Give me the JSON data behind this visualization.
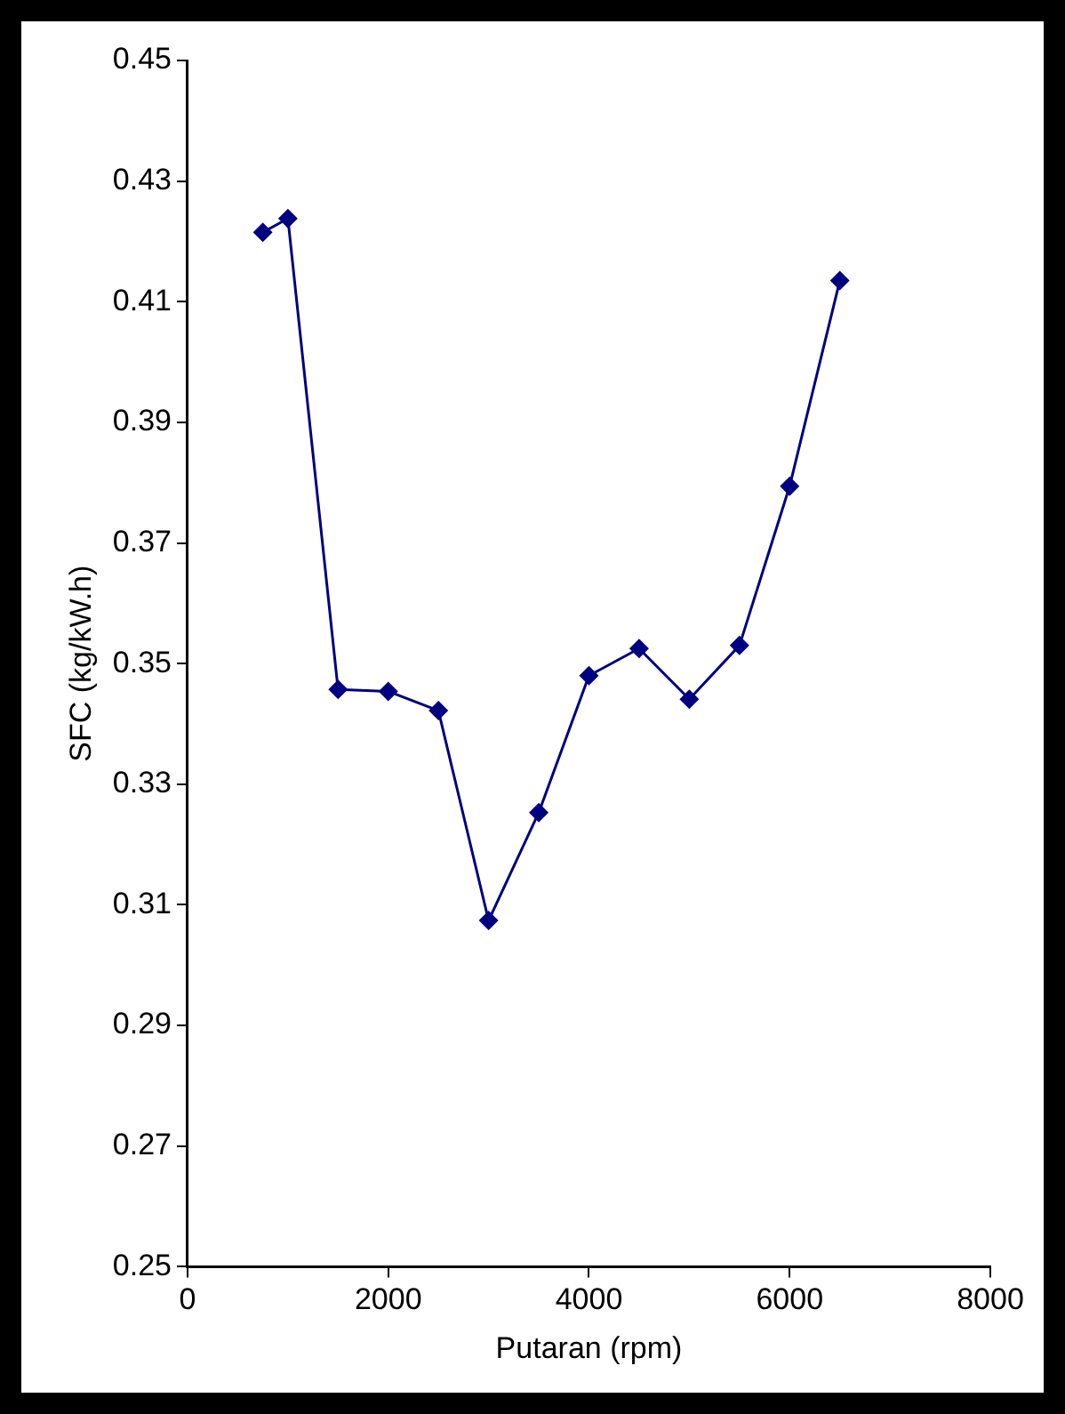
{
  "chart_data": {
    "type": "line",
    "xlabel": "Putaran (rpm)",
    "ylabel": "SFC (kg/kW.h)",
    "x": [
      750,
      1000,
      1500,
      2000,
      2500,
      3000,
      3500,
      4000,
      4500,
      5000,
      5500,
      6000,
      6500
    ],
    "series": [
      {
        "color": "#000080",
        "values": [
          0.4215,
          0.4238,
          0.3457,
          0.3454,
          0.3422,
          0.3074,
          0.3253,
          0.348,
          0.3525,
          0.3441,
          0.353,
          0.3794,
          0.4135
        ]
      }
    ],
    "xlim": [
      0,
      8000
    ],
    "xticks": [
      0,
      2000,
      4000,
      6000,
      8000
    ],
    "ylim": [
      0.25,
      0.45
    ],
    "yticks": [
      0.25,
      0.27,
      0.29,
      0.31,
      0.33,
      0.35,
      0.37,
      0.39,
      0.41,
      0.43,
      0.45
    ],
    "grid": false,
    "legend": false,
    "marker": "diamond",
    "line_style": "solid"
  }
}
